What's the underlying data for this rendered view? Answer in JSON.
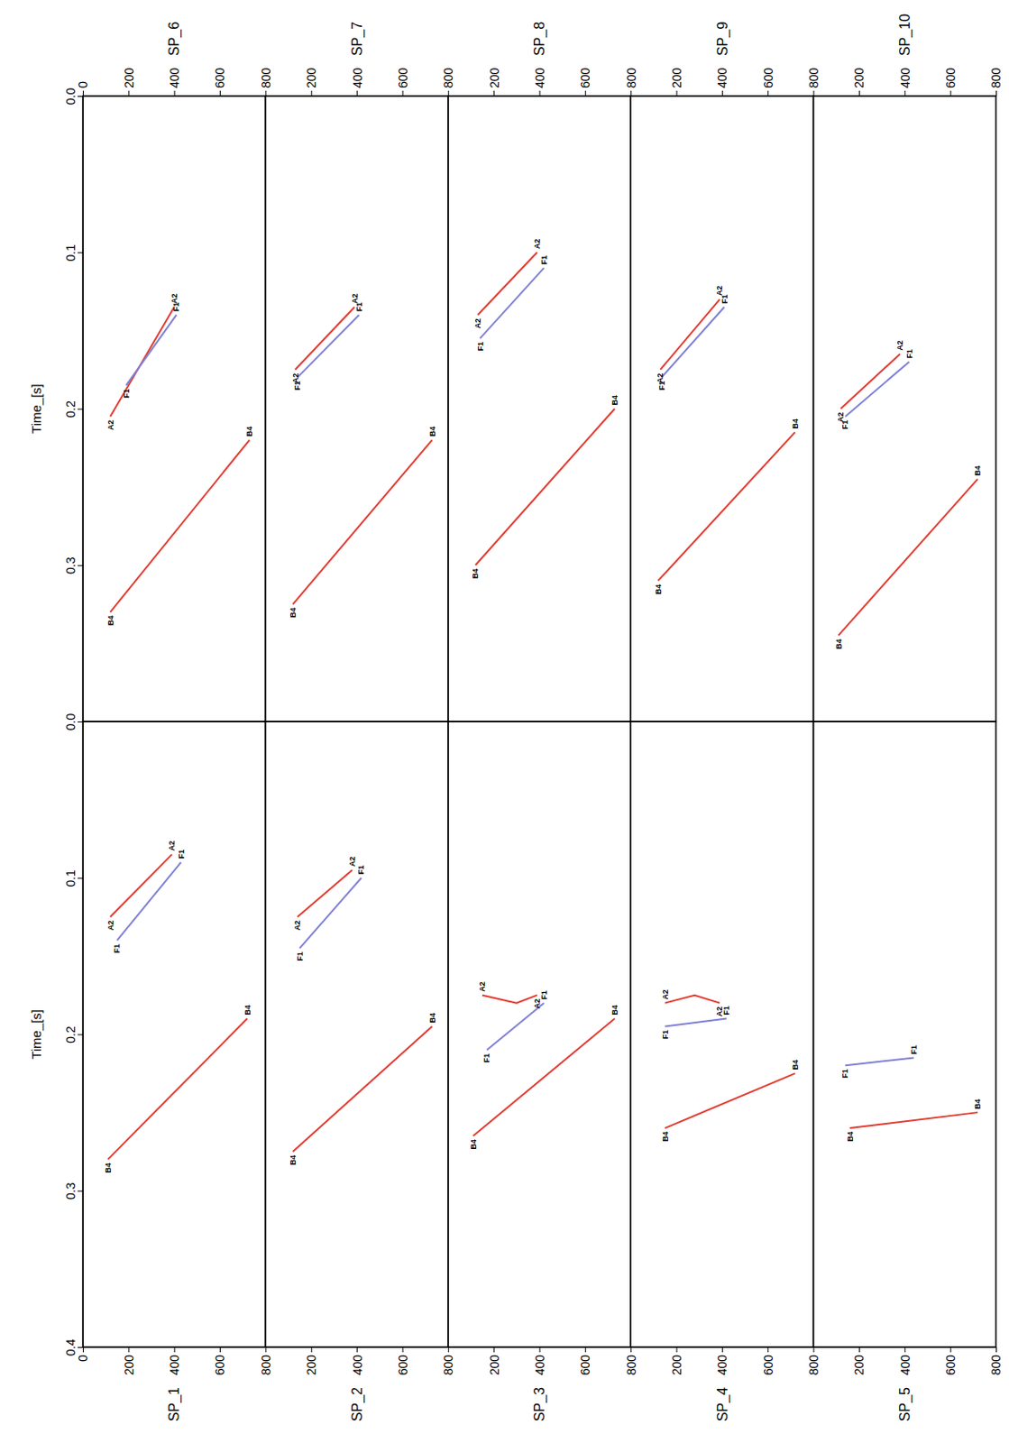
{
  "chart_data": [
    {
      "type": "line",
      "title": "SP_6",
      "xlim": [
        0,
        800
      ],
      "xticks": [
        0,
        200,
        400,
        600,
        800
      ],
      "ylim": [
        0,
        0.4
      ],
      "yticks": [
        {
          "value": 0,
          "label": "0.0"
        },
        0.1,
        0.2,
        0.3
      ],
      "ylabel": "Time_[s]",
      "series": [
        {
          "name": "A2",
          "color": "#e23b30",
          "x": [
            120,
            400
          ],
          "values": [
            0.205,
            0.135
          ]
        },
        {
          "name": "F1",
          "color": "#7f80d4",
          "x": [
            190,
            410
          ],
          "values": [
            0.185,
            0.14
          ]
        },
        {
          "name": "B4",
          "color": "#e23b30",
          "x": [
            120,
            730
          ],
          "values": [
            0.33,
            0.22
          ]
        }
      ]
    },
    {
      "type": "line",
      "title": "SP_7",
      "xlim": [
        0,
        800
      ],
      "xticks": [
        200,
        400,
        600,
        800
      ],
      "ylim": [
        0,
        0.4
      ],
      "tick_labels": "x",
      "series": [
        {
          "name": "A2",
          "color": "#e23b30",
          "x": [
            130,
            390
          ],
          "values": [
            0.175,
            0.135
          ]
        },
        {
          "name": "F1",
          "color": "#7f80d4",
          "x": [
            140,
            410
          ],
          "values": [
            0.18,
            0.14
          ]
        },
        {
          "name": "B4",
          "color": "#e23b30",
          "x": [
            120,
            730
          ],
          "values": [
            0.325,
            0.22
          ]
        }
      ]
    },
    {
      "type": "line",
      "title": "SP_8",
      "xlim": [
        0,
        800
      ],
      "xticks": [
        200,
        400,
        600,
        800
      ],
      "ylim": [
        0,
        0.4
      ],
      "tick_labels": "x",
      "series": [
        {
          "name": "A2",
          "color": "#e23b30",
          "x": [
            130,
            390
          ],
          "values": [
            0.14,
            0.1
          ]
        },
        {
          "name": "F1",
          "color": "#7f80d4",
          "x": [
            140,
            420
          ],
          "values": [
            0.155,
            0.11
          ]
        },
        {
          "name": "B4",
          "color": "#e23b30",
          "x": [
            120,
            730
          ],
          "values": [
            0.3,
            0.2
          ]
        }
      ]
    },
    {
      "type": "line",
      "title": "SP_9",
      "xlim": [
        0,
        800
      ],
      "xticks": [
        200,
        400,
        600,
        800
      ],
      "ylim": [
        0,
        0.4
      ],
      "tick_labels": "x",
      "series": [
        {
          "name": "A2",
          "color": "#e23b30",
          "x": [
            130,
            390
          ],
          "values": [
            0.175,
            0.13
          ]
        },
        {
          "name": "F1",
          "color": "#7f80d4",
          "x": [
            135,
            410
          ],
          "values": [
            0.18,
            0.135
          ]
        },
        {
          "name": "B4",
          "color": "#e23b30",
          "x": [
            120,
            720
          ],
          "values": [
            0.31,
            0.215
          ]
        }
      ]
    },
    {
      "type": "line",
      "title": "SP_10",
      "xlim": [
        0,
        800
      ],
      "xticks": [
        200,
        400,
        600,
        800
      ],
      "ylim": [
        0,
        0.4
      ],
      "tick_labels": "x",
      "series": [
        {
          "name": "A2",
          "color": "#e23b30",
          "x": [
            120,
            380
          ],
          "values": [
            0.2,
            0.165
          ]
        },
        {
          "name": "F1",
          "color": "#7f80d4",
          "x": [
            140,
            420
          ],
          "values": [
            0.205,
            0.17
          ]
        },
        {
          "name": "B4",
          "color": "#e23b30",
          "x": [
            110,
            720
          ],
          "values": [
            0.345,
            0.245
          ]
        }
      ]
    },
    {
      "type": "line",
      "title": "SP_1",
      "xlim": [
        0,
        800
      ],
      "xticks": [
        0,
        200,
        400,
        600,
        800
      ],
      "ylim": [
        0,
        0.4
      ],
      "yticks": [
        {
          "value": 0,
          "label": "0.0"
        },
        0.1,
        0.2,
        0.3,
        0.4
      ],
      "ylabel": "Time_[s]",
      "series": [
        {
          "name": "A2",
          "color": "#e23b30",
          "x": [
            120,
            390
          ],
          "values": [
            0.125,
            0.085
          ]
        },
        {
          "name": "F1",
          "color": "#7f80d4",
          "x": [
            150,
            430
          ],
          "values": [
            0.14,
            0.09
          ]
        },
        {
          "name": "B4",
          "color": "#e23b30",
          "x": [
            110,
            720
          ],
          "values": [
            0.28,
            0.19
          ]
        }
      ]
    },
    {
      "type": "line",
      "title": "SP_2",
      "xlim": [
        0,
        800
      ],
      "xticks": [
        200,
        400,
        600,
        800
      ],
      "ylim": [
        0,
        0.4
      ],
      "tick_labels": "x",
      "series": [
        {
          "name": "A2",
          "color": "#e23b30",
          "x": [
            140,
            380
          ],
          "values": [
            0.125,
            0.095
          ]
        },
        {
          "name": "F1",
          "color": "#7f80d4",
          "x": [
            150,
            420
          ],
          "values": [
            0.145,
            0.1
          ]
        },
        {
          "name": "B4",
          "color": "#e23b30",
          "x": [
            120,
            730
          ],
          "values": [
            0.275,
            0.195
          ]
        }
      ]
    },
    {
      "type": "line",
      "title": "SP_3",
      "xlim": [
        0,
        800
      ],
      "xticks": [
        200,
        400,
        600,
        800
      ],
      "ylim": [
        0,
        0.4
      ],
      "tick_labels": "x",
      "series": [
        {
          "name": "A2",
          "color": "#e23b30",
          "x": [
            150,
            300,
            390
          ],
          "values": [
            0.175,
            0.18,
            0.175
          ]
        },
        {
          "name": "F1",
          "color": "#7f80d4",
          "x": [
            170,
            420
          ],
          "values": [
            0.21,
            0.18
          ]
        },
        {
          "name": "B4",
          "color": "#e23b30",
          "x": [
            110,
            730
          ],
          "values": [
            0.265,
            0.19
          ]
        }
      ]
    },
    {
      "type": "line",
      "title": "SP_4",
      "xlim": [
        0,
        800
      ],
      "xticks": [
        200,
        400,
        600,
        800
      ],
      "ylim": [
        0,
        0.4
      ],
      "tick_labels": "x",
      "series": [
        {
          "name": "A2",
          "color": "#e23b30",
          "x": [
            150,
            280,
            390
          ],
          "values": [
            0.18,
            0.175,
            0.18
          ]
        },
        {
          "name": "F1",
          "color": "#7f80d4",
          "x": [
            150,
            420
          ],
          "values": [
            0.195,
            0.19
          ]
        },
        {
          "name": "B4",
          "color": "#e23b30",
          "x": [
            150,
            720
          ],
          "values": [
            0.26,
            0.225
          ]
        }
      ]
    },
    {
      "type": "line",
      "title": "SP_5",
      "xlim": [
        0,
        800
      ],
      "xticks": [
        200,
        400,
        600,
        800
      ],
      "ylim": [
        0,
        0.4
      ],
      "tick_labels": "x",
      "series": [
        {
          "name": "F1",
          "color": "#7f80d4",
          "x": [
            140,
            440
          ],
          "values": [
            0.22,
            0.215
          ]
        },
        {
          "name": "B4",
          "color": "#e23b30",
          "x": [
            160,
            720
          ],
          "values": [
            0.26,
            0.25
          ]
        }
      ]
    }
  ]
}
